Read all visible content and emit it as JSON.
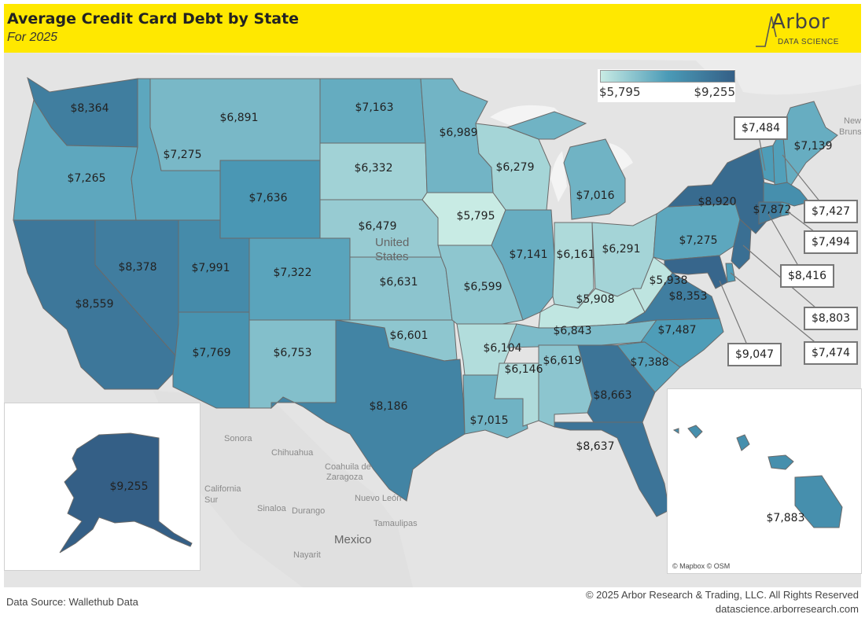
{
  "header": {
    "title": "Average Credit Card Debt by State",
    "subtitle": "For 2025",
    "logo_text": "Arbor",
    "logo_sub": "DATA SCIENCE",
    "background": "#ffe800"
  },
  "legend": {
    "min_label": "$5,795",
    "max_label": "$9,255",
    "min_color": "#c8ebe4",
    "max_color": "#345f86"
  },
  "states": [
    {
      "id": "WA",
      "label": "$8,364",
      "value": 8364
    },
    {
      "id": "OR",
      "label": "$7,265",
      "value": 7265
    },
    {
      "id": "CA",
      "label": "$8,559",
      "value": 8559
    },
    {
      "id": "ID",
      "label": "$7,275",
      "value": 7275
    },
    {
      "id": "NV",
      "label": "$8,378",
      "value": 8378
    },
    {
      "id": "MT",
      "label": "$6,891",
      "value": 6891
    },
    {
      "id": "WY",
      "label": "$7,636",
      "value": 7636
    },
    {
      "id": "UT",
      "label": "$7,991",
      "value": 7991
    },
    {
      "id": "AZ",
      "label": "$7,769",
      "value": 7769
    },
    {
      "id": "CO",
      "label": "$7,322",
      "value": 7322
    },
    {
      "id": "NM",
      "label": "$6,753",
      "value": 6753
    },
    {
      "id": "ND",
      "label": "$7,163",
      "value": 7163
    },
    {
      "id": "SD",
      "label": "$6,332",
      "value": 6332
    },
    {
      "id": "NE",
      "label": "$6,479",
      "value": 6479
    },
    {
      "id": "KS",
      "label": "$6,631",
      "value": 6631
    },
    {
      "id": "OK",
      "label": "$6,601",
      "value": 6601
    },
    {
      "id": "TX",
      "label": "$8,186",
      "value": 8186
    },
    {
      "id": "MN",
      "label": "$6,989",
      "value": 6989
    },
    {
      "id": "IA",
      "label": "$5,795",
      "value": 5795
    },
    {
      "id": "MO",
      "label": "$6,599",
      "value": 6599
    },
    {
      "id": "AR",
      "label": "$6,104",
      "value": 6104
    },
    {
      "id": "LA",
      "label": "$7,015",
      "value": 7015
    },
    {
      "id": "WI",
      "label": "$6,279",
      "value": 6279
    },
    {
      "id": "IL",
      "label": "$7,141",
      "value": 7141
    },
    {
      "id": "MS",
      "label": "$6,146",
      "value": 6146
    },
    {
      "id": "MI",
      "label": "$7,016",
      "value": 7016
    },
    {
      "id": "IN",
      "label": "$6,161",
      "value": 6161
    },
    {
      "id": "OH",
      "label": "$6,291",
      "value": 6291
    },
    {
      "id": "KY",
      "label": "$5,908",
      "value": 5908
    },
    {
      "id": "TN",
      "label": "$6,843",
      "value": 6843
    },
    {
      "id": "AL",
      "label": "$6,619",
      "value": 6619
    },
    {
      "id": "GA",
      "label": "$8,663",
      "value": 8663
    },
    {
      "id": "FL",
      "label": "$8,637",
      "value": 8637
    },
    {
      "id": "SC",
      "label": "$7,388",
      "value": 7388
    },
    {
      "id": "NC",
      "label": "$7,487",
      "value": 7487
    },
    {
      "id": "VA",
      "label": "$8,353",
      "value": 8353
    },
    {
      "id": "WV",
      "label": "$5,938",
      "value": 5938
    },
    {
      "id": "PA",
      "label": "$7,275",
      "value": 7275
    },
    {
      "id": "NY",
      "label": "$8,920",
      "value": 8920
    },
    {
      "id": "ME",
      "label": "$7,139",
      "value": 7139
    },
    {
      "id": "MA",
      "label": "$7,872",
      "value": 7872
    },
    {
      "id": "VT",
      "label": "$7,484",
      "value": 7484
    },
    {
      "id": "NH",
      "label": "$7,427",
      "value": 7427
    },
    {
      "id": "RI",
      "label": "$7,494",
      "value": 7494
    },
    {
      "id": "CT",
      "label": "$8,416",
      "value": 8416
    },
    {
      "id": "NJ",
      "label": "$8,803",
      "value": 8803
    },
    {
      "id": "DE",
      "label": "$7,474",
      "value": 7474
    },
    {
      "id": "MD",
      "label": "$9,047",
      "value": 9047
    },
    {
      "id": "AK",
      "label": "$9,255",
      "value": 9255
    },
    {
      "id": "HI",
      "label": "$7,883",
      "value": 7883
    }
  ],
  "places": {
    "united_states": "United\nStates",
    "mexico": "Mexico",
    "sonora": "Sonora",
    "chihuahua": "Chihuahua",
    "coahuila": "Coahuila de\nZaragoza",
    "nuevo_leon": "Nuevo León",
    "tamaulipas": "Tamaulipas",
    "sinaloa": "Sinaloa",
    "durango": "Durango",
    "baja": "California\nSur",
    "nayarit": "Nayarit",
    "new_brunswick": "New\nBrunsw"
  },
  "attribution": "© Mapbox © OSM",
  "footer": {
    "source": "Data Source: Wallethub Data",
    "copyright": "© 2025 Arbor Research & Trading, LLC. All Rights Reserved",
    "website": "datascience.arborresearch.com"
  }
}
